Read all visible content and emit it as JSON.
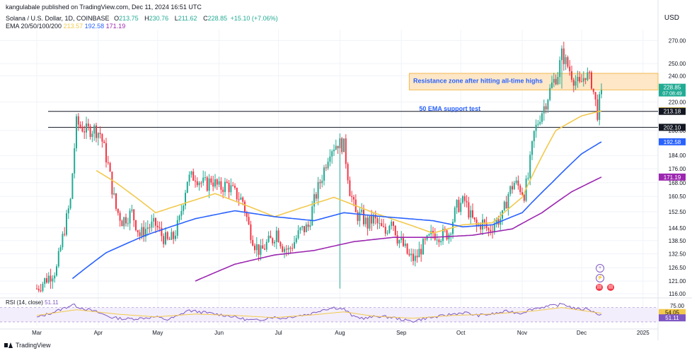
{
  "header": {
    "published": "kangulabale published on TradingView.com, Dec 11, 2024 16:51 UTC",
    "symbol": "Solana / U.S. Dollar, 1D, COINBASE",
    "ohlc": {
      "o_label": "O",
      "o": "213.75",
      "h_label": "H",
      "h": "230.76",
      "l_label": "L",
      "l": "211.62",
      "c_label": "C",
      "c": "228.85",
      "change": "+15.10 (+7.06%)"
    },
    "ema_label": "EMA 20/50/100/200",
    "ema_values": {
      "ema20": "213.57",
      "ema50": "192.58",
      "ema100": "171.19"
    }
  },
  "currency": "USD",
  "rsi_title": "RSI (14, close)",
  "rsi_value": "51.11",
  "brand": "TradingView",
  "colors": {
    "up": "#22ab94",
    "down": "#f23645",
    "ema20": "#f2c94c",
    "ema50": "#2962ff",
    "ema100": "#9c27b0",
    "rsi": "#7e57c2",
    "rsi_ma": "#f2c94c",
    "zone_fill": "#fde7c6",
    "zone_stroke": "#f5b84f"
  },
  "chart_data": [
    {
      "type": "candlestick",
      "title": "Solana / U.S. Dollar, 1D, COINBASE",
      "ylabel": "USD",
      "y_scale": "log",
      "ylim": [
        116,
        280
      ],
      "y_ticks": [
        "270.00",
        "250.00",
        "240.00",
        "220.00",
        "200.00",
        "184.00",
        "176.00",
        "168.00",
        "160.50",
        "152.50",
        "144.50",
        "138.50",
        "132.50",
        "126.50",
        "121.00",
        "116.00"
      ],
      "x_ticks": [
        "Mar",
        "Apr",
        "May",
        "Jun",
        "Jul",
        "Aug",
        "Sep",
        "Oct",
        "Nov",
        "Dec",
        "2025"
      ],
      "x_tick_days": [
        0,
        31,
        61,
        92,
        122,
        153,
        184,
        214,
        245,
        275,
        306
      ],
      "last_day": 285,
      "close_anchors": [
        [
          0,
          118
        ],
        [
          10,
          126
        ],
        [
          17,
          158
        ],
        [
          20,
          205
        ],
        [
          25,
          200
        ],
        [
          29,
          201
        ],
        [
          32,
          198
        ],
        [
          36,
          178
        ],
        [
          38,
          165
        ],
        [
          40,
          154
        ],
        [
          43,
          148
        ],
        [
          48,
          152
        ],
        [
          52,
          141
        ],
        [
          56,
          145
        ],
        [
          60,
          146
        ],
        [
          63,
          141
        ],
        [
          66,
          138
        ],
        [
          69,
          140
        ],
        [
          72,
          148
        ],
        [
          76,
          170
        ],
        [
          80,
          172
        ],
        [
          83,
          168
        ],
        [
          86,
          167
        ],
        [
          88,
          170
        ],
        [
          92,
          165
        ],
        [
          96,
          167
        ],
        [
          100,
          162
        ],
        [
          104,
          158
        ],
        [
          107,
          145
        ],
        [
          110,
          137
        ],
        [
          113,
          133
        ],
        [
          116,
          137
        ],
        [
          119,
          139
        ],
        [
          121,
          143
        ],
        [
          124,
          136
        ],
        [
          127,
          134
        ],
        [
          130,
          138
        ],
        [
          133,
          143
        ],
        [
          137,
          145
        ],
        [
          140,
          158
        ],
        [
          144,
          172
        ],
        [
          148,
          188
        ],
        [
          152,
          192
        ],
        [
          155,
          190
        ],
        [
          158,
          164
        ],
        [
          161,
          151
        ],
        [
          164,
          150
        ],
        [
          167,
          146
        ],
        [
          170,
          149
        ],
        [
          173,
          145
        ],
        [
          176,
          142
        ],
        [
          179,
          150
        ],
        [
          182,
          140
        ],
        [
          185,
          136
        ],
        [
          188,
          131
        ],
        [
          191,
          130
        ],
        [
          194,
          135
        ],
        [
          197,
          138
        ],
        [
          200,
          142
        ],
        [
          204,
          141
        ],
        [
          208,
          142
        ],
        [
          212,
          155
        ],
        [
          216,
          158
        ],
        [
          219,
          150
        ],
        [
          222,
          145
        ],
        [
          225,
          147
        ],
        [
          228,
          143
        ],
        [
          231,
          147
        ],
        [
          235,
          150
        ],
        [
          238,
          162
        ],
        [
          241,
          168
        ],
        [
          244,
          165
        ],
        [
          246,
          162
        ],
        [
          248,
          171
        ],
        [
          251,
          198
        ],
        [
          254,
          210
        ],
        [
          257,
          220
        ],
        [
          260,
          233
        ],
        [
          263,
          242
        ],
        [
          265,
          258
        ],
        [
          268,
          248
        ],
        [
          271,
          238
        ],
        [
          274,
          232
        ],
        [
          277,
          242
        ],
        [
          280,
          235
        ],
        [
          283,
          212
        ],
        [
          285,
          228.85
        ]
      ],
      "notable_candles": [
        {
          "day": 153,
          "high": 196,
          "low": 118
        },
        {
          "day": 20,
          "high": 210,
          "low": 198
        },
        {
          "day": 265,
          "high": 265,
          "low": 230
        }
      ],
      "series": [
        {
          "name": "EMA 20",
          "anchors": [
            [
              30,
              175
            ],
            [
              40,
              168
            ],
            [
              60,
              152
            ],
            [
              90,
              162
            ],
            [
              120,
              150
            ],
            [
              150,
              160
            ],
            [
              170,
              152
            ],
            [
              200,
              142
            ],
            [
              215,
              146
            ],
            [
              230,
              147
            ],
            [
              245,
              160
            ],
            [
              262,
              200
            ],
            [
              275,
              210
            ],
            [
              285,
              213.57
            ]
          ]
        },
        {
          "name": "EMA 50",
          "anchors": [
            [
              18,
              122
            ],
            [
              35,
              133
            ],
            [
              55,
              141
            ],
            [
              80,
              149
            ],
            [
              100,
              153
            ],
            [
              120,
              150
            ],
            [
              140,
              148
            ],
            [
              155,
              152
            ],
            [
              175,
              150
            ],
            [
              200,
              148
            ],
            [
              215,
              145
            ],
            [
              230,
              146
            ],
            [
              245,
              152
            ],
            [
              260,
              168
            ],
            [
              275,
              185
            ],
            [
              285,
              192.58
            ]
          ]
        },
        {
          "name": "EMA 100",
          "anchors": [
            [
              80,
              121
            ],
            [
              100,
              128
            ],
            [
              120,
              132
            ],
            [
              140,
              134
            ],
            [
              160,
              138
            ],
            [
              180,
              140
            ],
            [
              200,
              140
            ],
            [
              220,
              141
            ],
            [
              240,
              144
            ],
            [
              255,
              152
            ],
            [
              270,
              163
            ],
            [
              285,
              171.19
            ]
          ]
        }
      ],
      "horizontal_lines": [
        213.18,
        202.1
      ],
      "resistance_zone": {
        "low": 229,
        "high": 242,
        "from_day": 188
      },
      "annotations": [
        {
          "text": "Resistance zone after hitting all-time highs",
          "x_day": 190,
          "y": 236
        },
        {
          "text": "50 EMA support test",
          "x_day": 193,
          "y": 215
        }
      ],
      "price_labels": [
        {
          "text": "228.85",
          "sub": "07:08:49",
          "value": 228.85
        },
        {
          "text": "213.57",
          "value": 213.57
        },
        {
          "text": "213.18",
          "value": 213.18
        },
        {
          "text": "202.10",
          "value": 202.1
        },
        {
          "text": "192.58",
          "value": 192.58
        },
        {
          "text": "171.19",
          "value": 171.19
        }
      ]
    },
    {
      "type": "line",
      "title": "RSI (14, close)",
      "ylim": [
        20,
        85
      ],
      "y_ticks": [
        "75.00"
      ],
      "bands": [
        30,
        70
      ],
      "series": [
        {
          "name": "RSI",
          "anchors": [
            [
              0,
              42
            ],
            [
              10,
              60
            ],
            [
              18,
              78
            ],
            [
              22,
              70
            ],
            [
              30,
              58
            ],
            [
              38,
              42
            ],
            [
              45,
              38
            ],
            [
              52,
              40
            ],
            [
              60,
              44
            ],
            [
              66,
              36
            ],
            [
              72,
              48
            ],
            [
              76,
              62
            ],
            [
              82,
              58
            ],
            [
              90,
              52
            ],
            [
              98,
              46
            ],
            [
              106,
              36
            ],
            [
              112,
              34
            ],
            [
              118,
              44
            ],
            [
              124,
              40
            ],
            [
              130,
              46
            ],
            [
              138,
              52
            ],
            [
              144,
              64
            ],
            [
              150,
              70
            ],
            [
              155,
              66
            ],
            [
              160,
              44
            ],
            [
              166,
              40
            ],
            [
              172,
              46
            ],
            [
              180,
              42
            ],
            [
              186,
              34
            ],
            [
              190,
              32
            ],
            [
              196,
              40
            ],
            [
              202,
              44
            ],
            [
              210,
              52
            ],
            [
              216,
              56
            ],
            [
              222,
              48
            ],
            [
              230,
              52
            ],
            [
              238,
              60
            ],
            [
              244,
              54
            ],
            [
              250,
              66
            ],
            [
              256,
              72
            ],
            [
              262,
              76
            ],
            [
              266,
              80
            ],
            [
              270,
              70
            ],
            [
              274,
              64
            ],
            [
              278,
              68
            ],
            [
              282,
              54
            ],
            [
              285,
              51.11
            ]
          ]
        },
        {
          "name": "RSI MA",
          "anchors": [
            [
              0,
              48
            ],
            [
              20,
              64
            ],
            [
              40,
              52
            ],
            [
              60,
              44
            ],
            [
              80,
              52
            ],
            [
              100,
              48
            ],
            [
              120,
              42
            ],
            [
              140,
              50
            ],
            [
              155,
              58
            ],
            [
              170,
              46
            ],
            [
              190,
              40
            ],
            [
              210,
              48
            ],
            [
              230,
              52
            ],
            [
              250,
              60
            ],
            [
              265,
              70
            ],
            [
              285,
              54.05
            ]
          ]
        }
      ],
      "value_labels": [
        {
          "text": "54.05",
          "value": 54.05
        },
        {
          "text": "51.11",
          "value": 51.11
        }
      ]
    }
  ]
}
